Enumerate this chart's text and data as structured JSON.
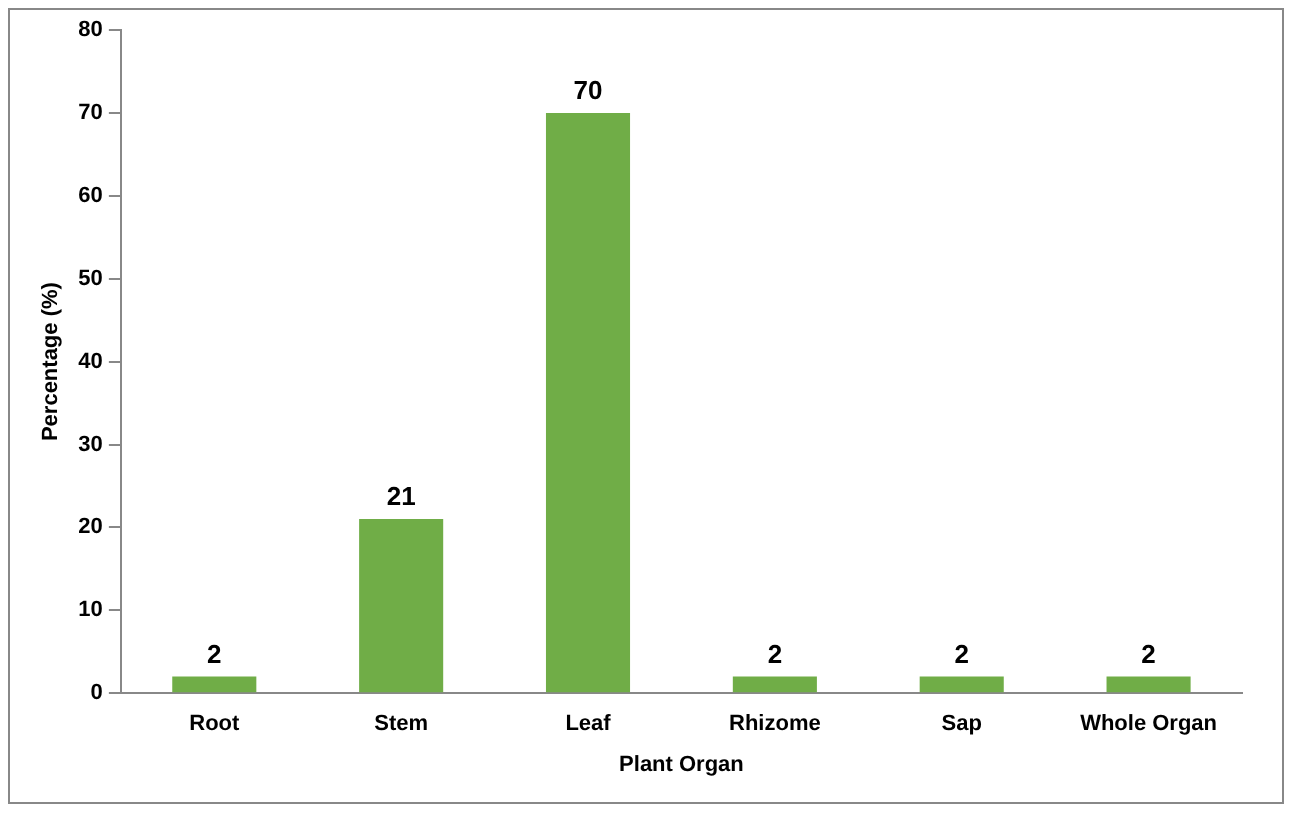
{
  "chart_data": {
    "type": "bar",
    "xlabel": "Plant Organ",
    "ylabel": "Percentage (%)",
    "categories": [
      "Root",
      "Stem",
      "Leaf",
      "Rhizome",
      "Sap",
      "Whole Organ"
    ],
    "values": [
      2,
      21,
      70,
      2,
      2,
      2
    ],
    "color": "#70ad47",
    "ylim": [
      0,
      80
    ],
    "yticks": [
      0,
      10,
      20,
      30,
      40,
      50,
      60,
      70,
      80
    ],
    "grid": false,
    "data_labels": true
  }
}
